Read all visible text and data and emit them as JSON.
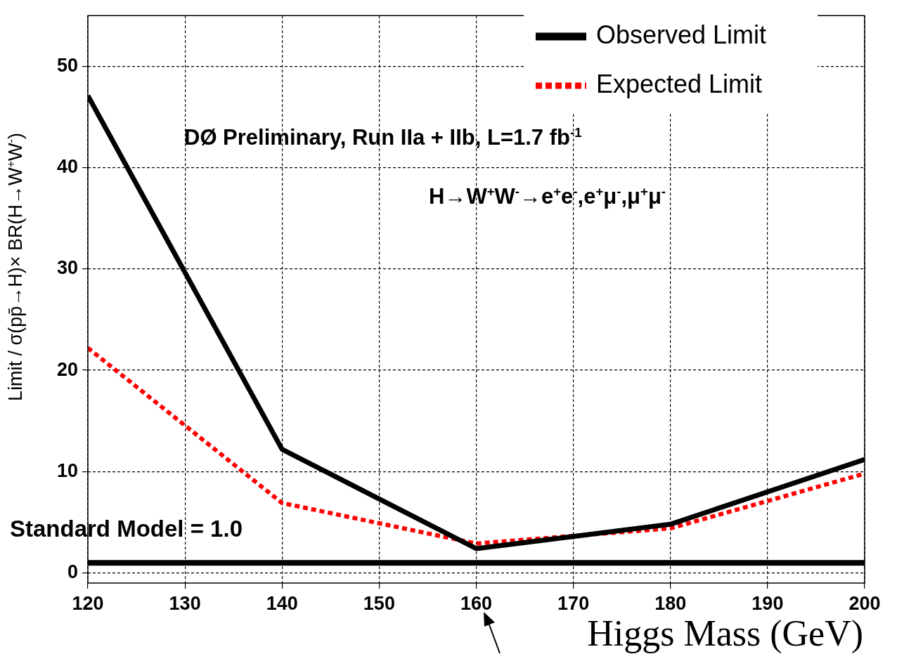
{
  "chart_data": {
    "type": "line",
    "xlabel": "Higgs Mass (GeV)",
    "ylabel": "Limit / σ(pp̄→H)× BR(H→W$^{+}$W$^{-}$)",
    "x": [
      120,
      140,
      160,
      180,
      200
    ],
    "series": [
      {
        "name": "Observed Limit",
        "color": "#000000",
        "values": [
          47.1,
          12.2,
          2.4,
          4.8,
          11.2
        ],
        "line_style": "solid"
      },
      {
        "name": "Expected Limit",
        "color": "#ff0000",
        "values": [
          22.2,
          6.9,
          2.9,
          4.4,
          9.8
        ],
        "line_style": "dotted"
      }
    ],
    "xlim": [
      120,
      200
    ],
    "xticks": [
      120,
      130,
      140,
      150,
      160,
      170,
      180,
      190,
      200
    ],
    "ylim": [
      -1,
      55
    ],
    "yticks": [
      0,
      10,
      20,
      30,
      40,
      50
    ],
    "ref_lines": [
      {
        "axis": "y",
        "value": 1,
        "label": "Standard Model = 1.0",
        "color": "#000000"
      }
    ],
    "annotations": [
      "DØ Preliminary, Run IIa + IIb, L=1.7 fb$^{-1}$",
      "H→W$^{+}$W$^{-}$→e$^{+}$e$^{-}$,e$^{+}$μ$^{-}$,μ$^{+}$μ$^{-}$"
    ],
    "grid": true,
    "legend": "top right",
    "marker": "none"
  }
}
